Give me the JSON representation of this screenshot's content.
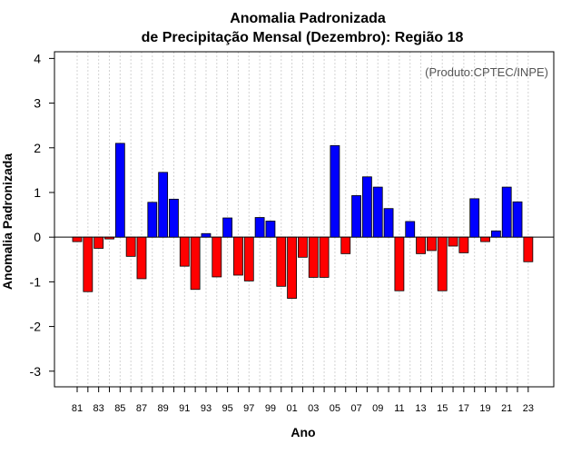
{
  "chart_data": {
    "type": "bar",
    "title": "Anomalia Padronizada",
    "subtitle": "de Precipitação Mensal (Dezembro): Região 18",
    "xlabel": "Ano",
    "ylabel": "Anomalia Padronizada",
    "credit": "(Produto:CPTEC/INPE)",
    "ylim": [
      -3.35,
      4.15
    ],
    "yticks": [
      "-3",
      "-2",
      "-1",
      "0",
      "1",
      "2",
      "3",
      "4"
    ],
    "xtick_labels": [
      "81",
      "83",
      "85",
      "87",
      "89",
      "91",
      "93",
      "95",
      "97",
      "99",
      "01",
      "03",
      "05",
      "07",
      "09",
      "11",
      "13",
      "15",
      "17",
      "19",
      "21",
      "23"
    ],
    "categories": [
      "1981",
      "1982",
      "1983",
      "1984",
      "1985",
      "1986",
      "1987",
      "1988",
      "1989",
      "1990",
      "1991",
      "1992",
      "1993",
      "1994",
      "1995",
      "1996",
      "1997",
      "1998",
      "1999",
      "2000",
      "2001",
      "2002",
      "2003",
      "2004",
      "2005",
      "2006",
      "2007",
      "2008",
      "2009",
      "2010",
      "2011",
      "2012",
      "2013",
      "2014",
      "2015",
      "2016",
      "2017",
      "2018",
      "2019",
      "2020",
      "2021",
      "2022",
      "2023"
    ],
    "values": [
      -0.1,
      -1.22,
      -0.25,
      -0.04,
      2.1,
      -0.43,
      -0.93,
      0.78,
      1.45,
      0.85,
      -0.65,
      -1.17,
      0.08,
      -0.89,
      0.43,
      -0.85,
      -0.98,
      0.44,
      0.36,
      -1.1,
      -1.37,
      -0.45,
      -0.9,
      -0.9,
      2.05,
      -0.37,
      0.93,
      1.35,
      1.12,
      0.64,
      -1.2,
      0.35,
      -0.37,
      -0.3,
      -1.2,
      -0.2,
      -0.35,
      0.86,
      -0.1,
      0.14,
      1.12,
      0.79,
      -0.55
    ],
    "colors": {
      "positive": "#0000ff",
      "negative": "#ff0000",
      "grid": "#d3d3d3"
    }
  }
}
